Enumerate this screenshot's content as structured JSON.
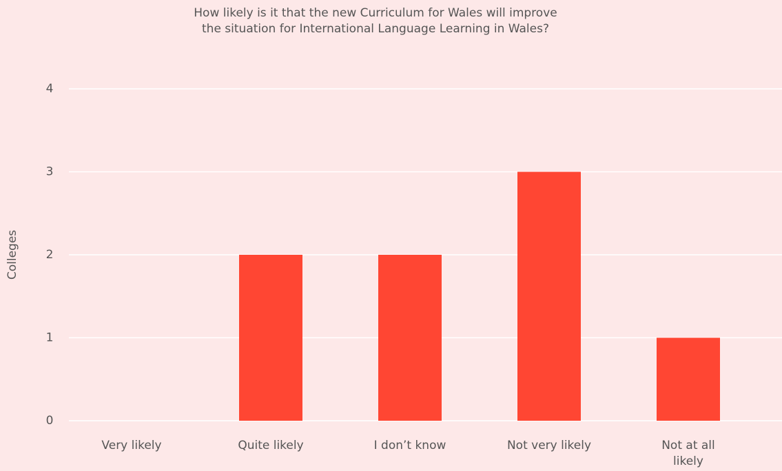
{
  "chart_data": {
    "type": "bar",
    "title": "How likely is it that the new Curriculum for Wales will improve the situation for International Language Learning in Wales?",
    "y_label": "Colleges",
    "categories": [
      "Very likely",
      "Quite likely",
      "I don’t know",
      "Not very likely",
      "Not at all likely"
    ],
    "values": [
      0,
      2,
      2,
      3,
      1
    ],
    "color": "#ff4633",
    "ylim": [
      0,
      4
    ],
    "yticks": [
      0,
      1,
      2,
      3,
      4
    ],
    "grid": true
  }
}
